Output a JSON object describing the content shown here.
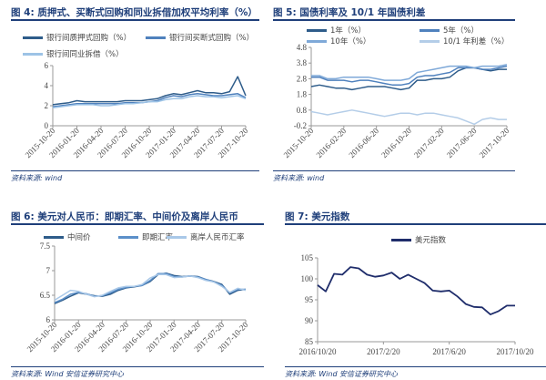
{
  "figures": [
    {
      "title": "图 4: 质押式、买断式回购和同业拆借加权平均利率（%）",
      "source": "资料来源: wind",
      "legend": [
        "银行间质押式回购（%）",
        "银行间买断式回购（%）",
        "银行间同业拆借（%）"
      ]
    },
    {
      "title": "图 5: 国债利率及 10/1 年国债利差",
      "source": "资料来源: wind",
      "legend": [
        "1年（%）",
        "5年（%）",
        "10年（%）",
        "10/1 年利差（%）"
      ]
    },
    {
      "title": "图 6: 美元对人民币：即期汇率、中间价及离岸人民币",
      "source": "资料来源: Wind 安信证券研究中心",
      "legend": [
        "中间价",
        "即期汇率",
        "离岸人民币汇率"
      ]
    },
    {
      "title": "图 7: 美元指数",
      "source": "资料来源: Wind 安信证券研究中心",
      "legend": [
        "美元指数"
      ]
    }
  ],
  "chart_data": [
    {
      "type": "line",
      "ylim": [
        0,
        6
      ],
      "yticks": [
        0,
        2,
        4,
        6
      ],
      "xlabels": [
        "2015-10-20",
        "2016-01-20",
        "2016-04-20",
        "2016-07-20",
        "2016-10-20",
        "2017-01-20",
        "2017-04-20",
        "2017-07-20",
        "2017-10-20"
      ],
      "x": [
        "2015-10",
        "2015-11",
        "2015-12",
        "2016-01",
        "2016-02",
        "2016-03",
        "2016-04",
        "2016-05",
        "2016-06",
        "2016-07",
        "2016-08",
        "2016-09",
        "2016-10",
        "2016-11",
        "2016-12",
        "2017-01",
        "2017-02",
        "2017-03",
        "2017-04",
        "2017-05",
        "2017-06",
        "2017-07",
        "2017-08",
        "2017-09",
        "2017-10"
      ],
      "series": [
        {
          "name": "银行间质押式回购（%）",
          "color": "#2E5C8A",
          "values": [
            2.1,
            2.2,
            2.3,
            2.5,
            2.4,
            2.4,
            2.4,
            2.4,
            2.4,
            2.5,
            2.5,
            2.5,
            2.6,
            2.7,
            3.0,
            3.2,
            3.1,
            3.3,
            3.5,
            3.3,
            3.3,
            3.2,
            3.4,
            4.9,
            3.0
          ]
        },
        {
          "name": "银行间买断式回购（%）",
          "color": "#4F81BD",
          "values": [
            1.9,
            2.0,
            2.1,
            2.2,
            2.2,
            2.2,
            2.2,
            2.2,
            2.2,
            2.3,
            2.3,
            2.3,
            2.4,
            2.5,
            2.8,
            3.0,
            2.9,
            3.1,
            3.2,
            3.1,
            3.0,
            3.0,
            3.1,
            3.2,
            2.8
          ]
        },
        {
          "name": "银行间同业拆借（%）",
          "color": "#9DC3E6",
          "values": [
            1.8,
            1.9,
            2.0,
            2.1,
            2.1,
            2.1,
            2.0,
            2.0,
            2.1,
            2.2,
            2.2,
            2.3,
            2.4,
            2.4,
            2.6,
            2.7,
            2.7,
            2.9,
            3.0,
            2.9,
            2.9,
            2.8,
            2.9,
            3.0,
            2.7
          ]
        }
      ]
    },
    {
      "type": "line",
      "ylim": [
        -0.2,
        4.8
      ],
      "yticks": [
        -0.2,
        0.8,
        1.8,
        2.8,
        3.8,
        4.8
      ],
      "xlabels": [
        "2015-10-20",
        "2016-02-20",
        "2016-06-20",
        "2016-10-20",
        "2017-02-20",
        "2017-06-20",
        "2017-10-20"
      ],
      "x": [
        "2015-10",
        "2015-11",
        "2015-12",
        "2016-01",
        "2016-02",
        "2016-03",
        "2016-04",
        "2016-05",
        "2016-06",
        "2016-07",
        "2016-08",
        "2016-09",
        "2016-10",
        "2016-11",
        "2016-12",
        "2017-01",
        "2017-02",
        "2017-03",
        "2017-04",
        "2017-05",
        "2017-06",
        "2017-07",
        "2017-08",
        "2017-09",
        "2017-10"
      ],
      "series": [
        {
          "name": "1年（%）",
          "color": "#2E5C8A",
          "values": [
            2.3,
            2.4,
            2.3,
            2.2,
            2.2,
            2.1,
            2.2,
            2.3,
            2.3,
            2.3,
            2.2,
            2.1,
            2.2,
            2.7,
            2.7,
            2.8,
            2.8,
            2.9,
            3.3,
            3.5,
            3.5,
            3.4,
            3.3,
            3.4,
            3.4
          ]
        },
        {
          "name": "5年（%）",
          "color": "#4F81BD",
          "values": [
            2.9,
            2.9,
            2.7,
            2.7,
            2.7,
            2.6,
            2.7,
            2.7,
            2.6,
            2.5,
            2.4,
            2.4,
            2.5,
            2.9,
            3.0,
            3.0,
            3.1,
            3.2,
            3.5,
            3.5,
            3.5,
            3.4,
            3.4,
            3.5,
            3.6
          ]
        },
        {
          "name": "10年（%）",
          "color": "#7FA9D8",
          "values": [
            3.0,
            3.0,
            2.8,
            2.8,
            2.9,
            2.9,
            2.9,
            2.9,
            2.8,
            2.7,
            2.7,
            2.7,
            2.8,
            3.2,
            3.3,
            3.4,
            3.5,
            3.6,
            3.6,
            3.6,
            3.5,
            3.6,
            3.6,
            3.6,
            3.7
          ]
        },
        {
          "name": "10/1 年利差（%）",
          "color": "#B4CDE8",
          "values": [
            0.7,
            0.6,
            0.5,
            0.6,
            0.7,
            0.8,
            0.7,
            0.6,
            0.5,
            0.4,
            0.5,
            0.6,
            0.6,
            0.5,
            0.6,
            0.6,
            0.5,
            0.4,
            0.3,
            0.1,
            -0.1,
            0.2,
            0.3,
            0.2,
            0.2
          ]
        }
      ]
    },
    {
      "type": "line",
      "ylim": [
        6,
        7.5
      ],
      "yticks": [
        6,
        6.5,
        7,
        7.5
      ],
      "xlabels": [
        "2015-10-20",
        "2016-01-20",
        "2016-04-20",
        "2016-07-20",
        "2016-10-20",
        "2017-01-20",
        "2017-04-20",
        "2017-07-20",
        "2017-10-20"
      ],
      "x": [
        "2015-10",
        "2015-11",
        "2015-12",
        "2016-01",
        "2016-02",
        "2016-03",
        "2016-04",
        "2016-05",
        "2016-06",
        "2016-07",
        "2016-08",
        "2016-09",
        "2016-10",
        "2016-11",
        "2016-12",
        "2017-01",
        "2017-02",
        "2017-03",
        "2017-04",
        "2017-05",
        "2017-06",
        "2017-07",
        "2017-08",
        "2017-09",
        "2017-10"
      ],
      "series": [
        {
          "name": "中间价",
          "color": "#2E5C8A",
          "values": [
            6.33,
            6.4,
            6.48,
            6.55,
            6.52,
            6.49,
            6.48,
            6.52,
            6.6,
            6.65,
            6.67,
            6.7,
            6.78,
            6.92,
            6.95,
            6.9,
            6.88,
            6.89,
            6.88,
            6.82,
            6.78,
            6.72,
            6.52,
            6.6,
            6.62
          ]
        },
        {
          "name": "即期汇率",
          "color": "#5B8FC9",
          "values": [
            6.35,
            6.42,
            6.52,
            6.56,
            6.53,
            6.48,
            6.49,
            6.55,
            6.62,
            6.66,
            6.68,
            6.7,
            6.8,
            6.94,
            6.94,
            6.88,
            6.87,
            6.89,
            6.87,
            6.82,
            6.77,
            6.7,
            6.55,
            6.62,
            6.62
          ]
        },
        {
          "name": "离岸人民币汇率",
          "color": "#A9C8E8",
          "values": [
            6.4,
            6.5,
            6.6,
            6.58,
            6.52,
            6.47,
            6.5,
            6.58,
            6.65,
            6.68,
            6.68,
            6.72,
            6.85,
            6.92,
            6.92,
            6.86,
            6.87,
            6.89,
            6.86,
            6.8,
            6.77,
            6.68,
            6.56,
            6.64,
            6.6
          ]
        }
      ]
    },
    {
      "type": "line",
      "ylim": [
        85,
        105
      ],
      "yticks": [
        85,
        90,
        95,
        100,
        105
      ],
      "xlabels": [
        "2016/10/20",
        "2017/2/20",
        "2017/6/20",
        "2017/10/20"
      ],
      "x": [
        "2016-10-20",
        "2016-11-05",
        "2016-11-20",
        "2016-12-05",
        "2016-12-20",
        "2017-01-05",
        "2017-01-20",
        "2017-02-05",
        "2017-02-20",
        "2017-03-05",
        "2017-03-20",
        "2017-04-05",
        "2017-04-20",
        "2017-05-05",
        "2017-05-20",
        "2017-06-05",
        "2017-06-20",
        "2017-07-05",
        "2017-07-20",
        "2017-08-05",
        "2017-08-20",
        "2017-09-05",
        "2017-09-20",
        "2017-10-05",
        "2017-10-20"
      ],
      "series": [
        {
          "name": "美元指数",
          "color": "#1F2D6B",
          "values": [
            98.5,
            97.0,
            101.2,
            101.0,
            102.8,
            102.5,
            101.0,
            100.5,
            100.8,
            101.5,
            100.0,
            101.0,
            100.0,
            99.0,
            97.2,
            97.0,
            97.2,
            95.8,
            94.0,
            93.3,
            93.2,
            91.5,
            92.3,
            93.6,
            93.6
          ]
        }
      ]
    }
  ]
}
